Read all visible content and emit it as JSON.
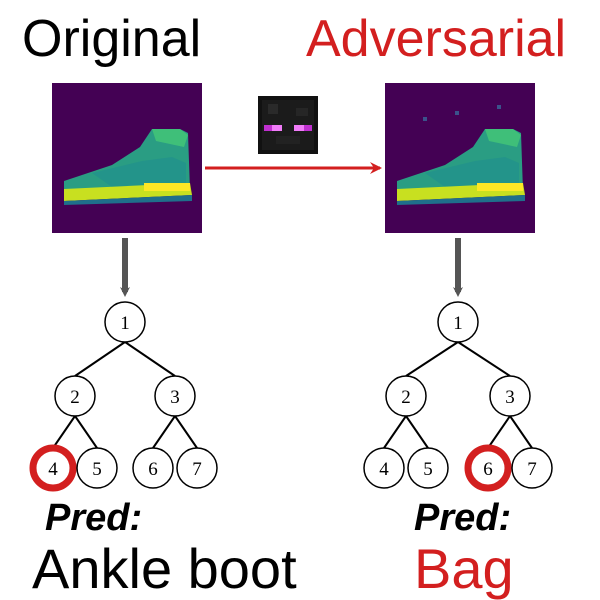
{
  "titles": {
    "original": "Original",
    "adversarial": "Adversarial"
  },
  "colors": {
    "red": "#d31f1f",
    "arrow_gray": "#555555",
    "image_bg": "#440154",
    "shoe_body": "#27ad81",
    "shoe_sole": "#c8e020",
    "pixel_magenta": "#e03ce8"
  },
  "icons": {
    "perturbation": "enderman-face-icon",
    "boot": "fashion-mnist-ankle-boot-image"
  },
  "trees": [
    {
      "nodes": [
        "1",
        "2",
        "3",
        "4",
        "5",
        "6",
        "7"
      ],
      "highlighted": "4",
      "pred_label": "Pred:",
      "pred_value": "Ankle boot"
    },
    {
      "nodes": [
        "1",
        "2",
        "3",
        "4",
        "5",
        "6",
        "7"
      ],
      "highlighted": "6",
      "pred_label": "Pred:",
      "pred_value": "Bag"
    }
  ]
}
